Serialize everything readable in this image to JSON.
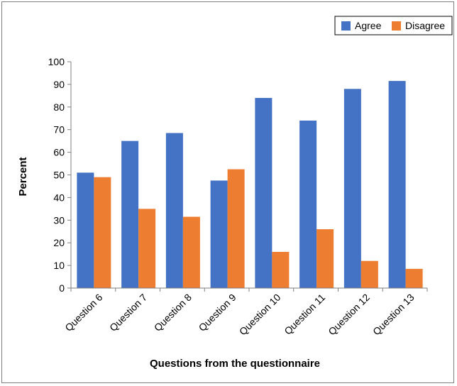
{
  "chart_data": {
    "type": "bar",
    "title": "",
    "xlabel": "Questions from the questionnaire",
    "ylabel": "Percent",
    "ylim": [
      0,
      100
    ],
    "yticks": [
      0,
      10,
      20,
      30,
      40,
      50,
      60,
      70,
      80,
      90,
      100
    ],
    "grid": false,
    "legend_position": "top-right",
    "categories": [
      "Question 6",
      "Question 7",
      "Question 8",
      "Question 9",
      "Question 10",
      "Question 11",
      "Question 12",
      "Question 13"
    ],
    "series": [
      {
        "name": "Agree",
        "color": "#4472C4",
        "values": [
          51,
          65,
          68.5,
          47.5,
          84,
          74,
          88,
          91.5
        ]
      },
      {
        "name": "Disagree",
        "color": "#ED7D31",
        "values": [
          49,
          35,
          31.5,
          52.5,
          16,
          26,
          12,
          8.5
        ]
      }
    ]
  }
}
